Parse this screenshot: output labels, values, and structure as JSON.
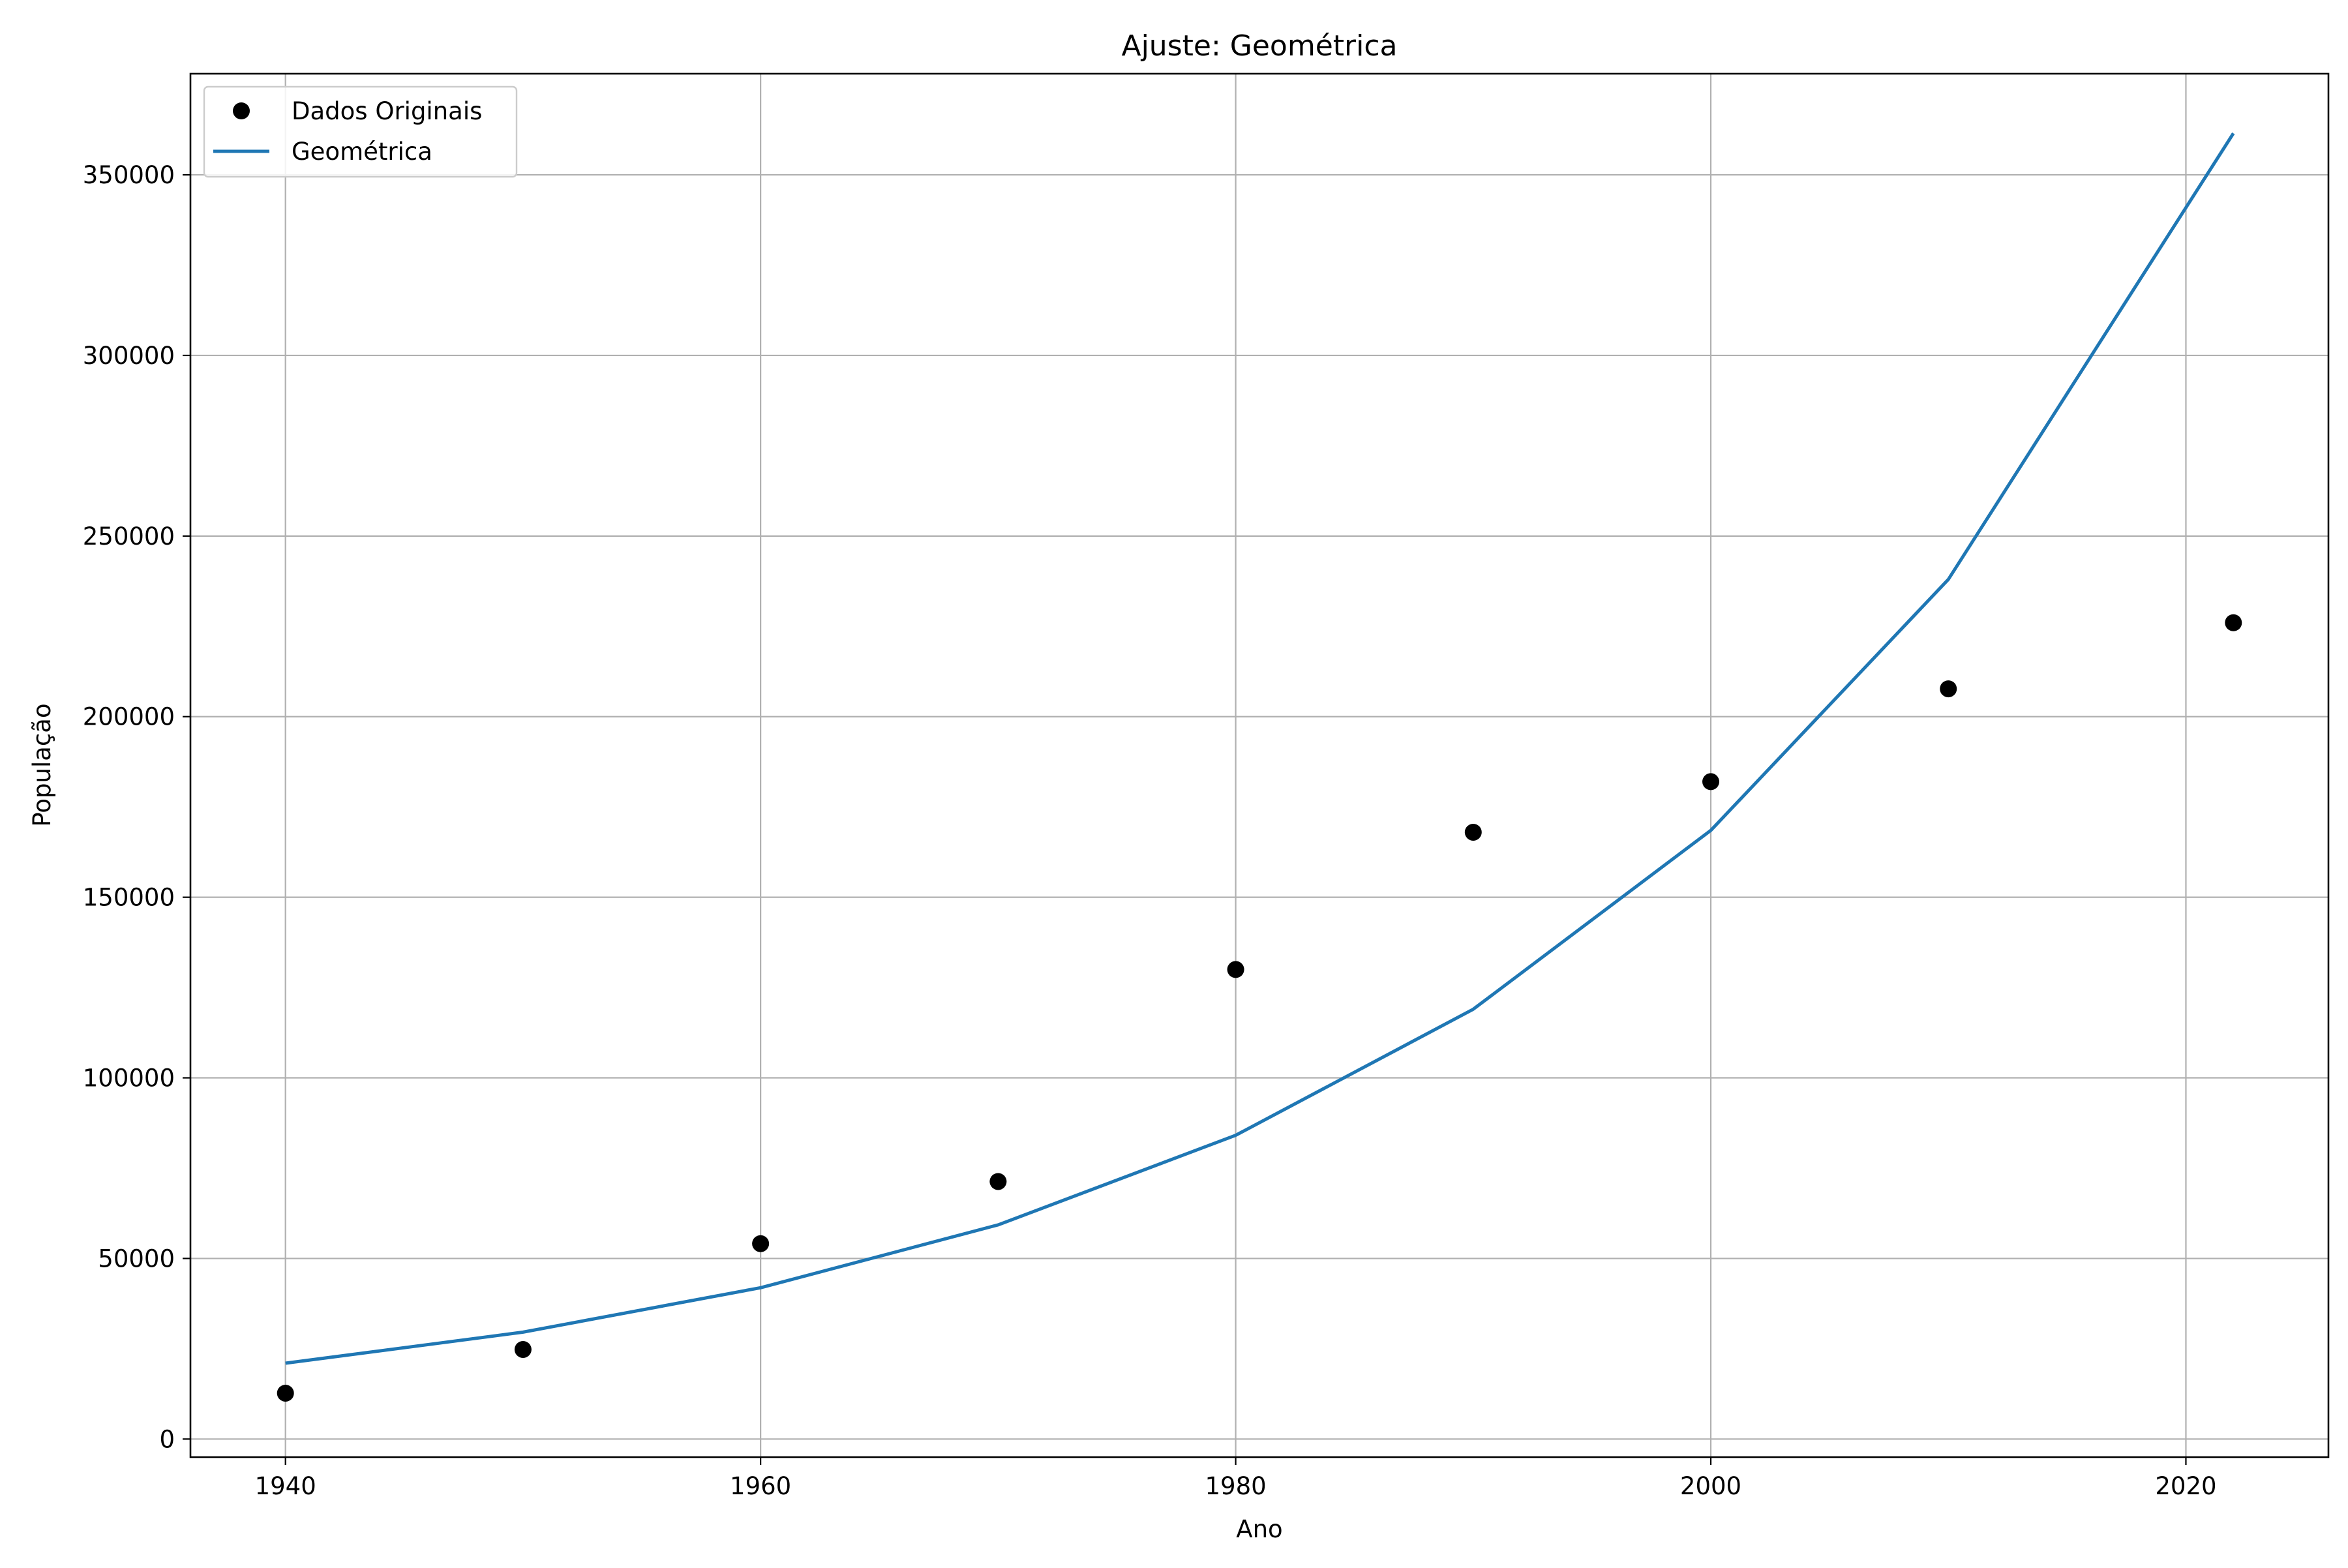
{
  "chart_data": {
    "type": "line",
    "title": "Ajuste: Geométrica",
    "xlabel": "Ano",
    "ylabel": "População",
    "xlim": [
      1936,
      2026
    ],
    "ylim": [
      -5000,
      378000
    ],
    "x_ticks": [
      1940,
      1960,
      1980,
      2000,
      2020
    ],
    "y_ticks": [
      0,
      50000,
      100000,
      150000,
      200000,
      250000,
      300000,
      350000
    ],
    "grid": true,
    "legend_position": "upper left",
    "series": [
      {
        "name": "Dados Originais",
        "kind": "scatter",
        "color": "#000000",
        "marker": "circle",
        "x": [
          1940,
          1950,
          1960,
          1970,
          1980,
          1990,
          2000,
          2010,
          2022
        ],
        "y": [
          12700,
          24800,
          54100,
          71300,
          130000,
          168000,
          182000,
          207700,
          226000
        ]
      },
      {
        "name": "Geométrica",
        "kind": "line",
        "color": "#1f77b4",
        "x": [
          1940,
          1950,
          1960,
          1970,
          1980,
          1990,
          2000,
          2010,
          2022
        ],
        "y": [
          21000,
          29600,
          41900,
          59300,
          84100,
          119000,
          168500,
          238000,
          361500
        ]
      }
    ]
  }
}
